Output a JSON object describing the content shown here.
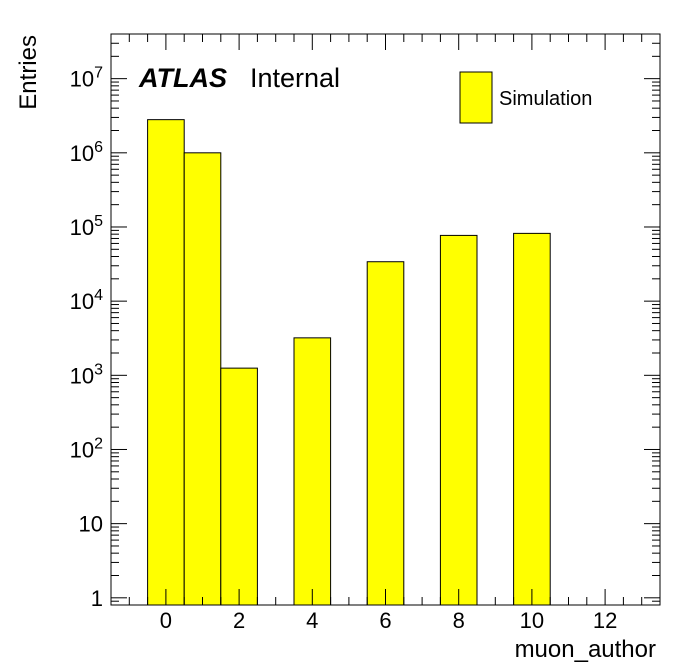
{
  "chart_data": {
    "type": "bar",
    "histogram": true,
    "xlabel": "muon_author",
    "ylabel": "Entries",
    "xlim": [
      -1.5,
      13.5
    ],
    "ylim": [
      0.8,
      40000000
    ],
    "yscale": "log",
    "bin_width": 1,
    "x_ticks": [
      0,
      2,
      4,
      6,
      8,
      10,
      12
    ],
    "y_ticks": [
      {
        "value": 1,
        "label": "1",
        "exp": ""
      },
      {
        "value": 10,
        "label": "10",
        "exp": ""
      },
      {
        "value": 100,
        "label": "10",
        "exp": "2"
      },
      {
        "value": 1000,
        "label": "10",
        "exp": "3"
      },
      {
        "value": 10000,
        "label": "10",
        "exp": "4"
      },
      {
        "value": 100000,
        "label": "10",
        "exp": "5"
      },
      {
        "value": 1000000,
        "label": "10",
        "exp": "6"
      },
      {
        "value": 10000000,
        "label": "10",
        "exp": "7"
      }
    ],
    "bins": [
      {
        "x": 0,
        "value": 2800000
      },
      {
        "x": 1,
        "value": 1000000
      },
      {
        "x": 2,
        "value": 1250
      },
      {
        "x": 4,
        "value": 3200
      },
      {
        "x": 6,
        "value": 34000
      },
      {
        "x": 8,
        "value": 77000
      },
      {
        "x": 10,
        "value": 82000
      }
    ],
    "series": [
      {
        "name": "Simulation",
        "color": "#ffff00"
      }
    ],
    "legend_position": "top-right",
    "grid": false
  },
  "labels": {
    "atlas": "ATLAS",
    "internal": "Internal"
  },
  "colors": {
    "fill": "#ffff00",
    "line": "#000000"
  }
}
